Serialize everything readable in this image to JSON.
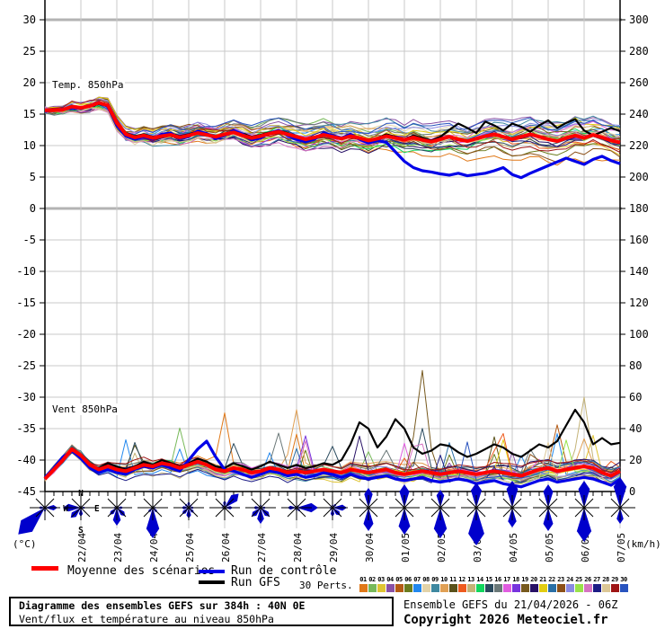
{
  "chart_data": {
    "type": "line",
    "title": "Diagramme des ensembles GEFS sur 384h : 40N 0E",
    "subtitle": "Vent/flux et température au niveau 850hPa",
    "run_info": "Ensemble GEFS du 21/04/2026 - 06Z",
    "copyright": "Copyright 2026 Meteociel.fr",
    "panel_labels": {
      "temp": "Temp. 850hPa",
      "wind": "Vent 850hPa"
    },
    "axes": {
      "left": {
        "unit": "(°C)",
        "ticks": [
          30,
          25,
          20,
          15,
          10,
          5,
          0,
          -5,
          -10,
          -15,
          -20,
          -25,
          -30,
          -35,
          -40,
          -45
        ],
        "range": [
          30,
          -45
        ]
      },
      "right": {
        "unit": "(km/h)",
        "ticks": [
          300,
          280,
          260,
          240,
          220,
          200,
          180,
          160,
          140,
          120,
          100,
          80,
          60,
          40,
          20,
          0
        ],
        "range": [
          300,
          0
        ]
      },
      "x": {
        "labels": [
          "22/04",
          "23/04",
          "24/04",
          "25/04",
          "26/04",
          "27/04",
          "28/04",
          "29/04",
          "30/04",
          "01/05",
          "02/05",
          "03/05",
          "04/05",
          "05/05",
          "06/05",
          "07/05"
        ],
        "hours": 384,
        "points": 65
      }
    },
    "legend": {
      "mean": {
        "label": "Moyenne des scénarios",
        "color": "#FF0000"
      },
      "control": {
        "label": "Run de contrôle",
        "color": "#0000E8"
      },
      "gfs": {
        "label": "Run GFS",
        "color": "#000000"
      },
      "perts_label": "30 Perts.",
      "pert_colors": [
        "#E07818",
        "#77B959",
        "#DFC432",
        "#8A51A5",
        "#B55A14",
        "#6B7C1E",
        "#2288EE",
        "#E2D3A9",
        "#3E88A0",
        "#E0A055",
        "#59511A",
        "#EE5A1E",
        "#C4B377",
        "#10D75D",
        "#2A4A5E",
        "#6A7878",
        "#E05DE0",
        "#7733DD",
        "#77591E",
        "#281166",
        "#E2CD11",
        "#2A6FA5",
        "#8C5018",
        "#8A8AE2",
        "#99E24A",
        "#D573C2",
        "#1C1C85",
        "#DCC796",
        "#9E1414",
        "#2853BE"
      ]
    },
    "series": {
      "temp": {
        "mean": [
          15.6,
          15.6,
          15.7,
          16.2,
          16.0,
          16.3,
          16.8,
          16.4,
          13.6,
          11.8,
          11.3,
          11.6,
          11.2,
          11.5,
          11.7,
          11.3,
          11.6,
          12.0,
          11.7,
          11.4,
          11.8,
          12.1,
          11.6,
          11.2,
          11.5,
          11.9,
          12.2,
          11.8,
          11.4,
          11.0,
          11.3,
          11.7,
          11.4,
          11.1,
          11.5,
          11.2,
          10.8,
          11.1,
          11.5,
          11.2,
          10.9,
          11.3,
          10.9,
          10.6,
          11.0,
          11.4,
          11.0,
          10.7,
          11.1,
          11.5,
          11.8,
          11.4,
          11.0,
          11.4,
          11.8,
          11.4,
          11.0,
          10.7,
          11.2,
          11.6,
          11.2,
          11.7,
          11.3,
          10.8,
          10.5
        ],
        "control": [
          15.5,
          15.6,
          15.8,
          16.0,
          15.9,
          16.4,
          16.9,
          16.2,
          13.2,
          11.5,
          11.0,
          11.4,
          11.0,
          11.8,
          12.0,
          11.1,
          11.4,
          12.3,
          11.9,
          11.1,
          11.6,
          12.4,
          11.8,
          10.9,
          11.2,
          12.0,
          12.4,
          11.6,
          11.0,
          10.6,
          11.0,
          12.0,
          11.6,
          11.2,
          11.8,
          11.0,
          10.4,
          10.8,
          10.5,
          9.0,
          7.5,
          6.5,
          6.0,
          5.8,
          5.5,
          5.3,
          5.6,
          5.2,
          5.4,
          5.6,
          6.0,
          6.5,
          5.4,
          4.9,
          5.6,
          6.2,
          6.8,
          7.4,
          8.0,
          7.5,
          7.0,
          7.8,
          8.3,
          7.6,
          7.1
        ],
        "gfs": [
          15.5,
          15.5,
          15.6,
          16.1,
          16.0,
          16.2,
          16.6,
          16.3,
          13.8,
          12.0,
          11.5,
          11.8,
          11.4,
          11.6,
          11.9,
          11.5,
          11.8,
          12.2,
          11.8,
          11.2,
          11.6,
          12.3,
          11.9,
          11.4,
          11.7,
          12.1,
          12.4,
          12.0,
          11.2,
          10.8,
          11.1,
          11.9,
          11.6,
          11.0,
          11.4,
          11.0,
          10.6,
          11.2,
          11.8,
          11.4,
          11.0,
          11.6,
          11.2,
          10.8,
          11.4,
          12.5,
          13.5,
          12.8,
          12.0,
          13.8,
          13.2,
          12.4,
          13.5,
          13.0,
          12.2,
          13.2,
          14.0,
          12.8,
          13.6,
          14.2,
          12.4,
          11.6,
          12.2,
          12.8,
          12.3
        ]
      },
      "wind": {
        "mean": [
          8,
          14,
          20,
          27,
          23,
          17,
          14,
          16,
          14,
          13,
          15,
          17,
          16,
          18,
          17,
          15,
          17,
          19,
          17,
          14,
          13,
          15,
          14,
          12,
          13,
          15,
          14,
          12,
          13,
          12,
          13,
          14,
          13,
          12,
          14,
          13,
          12,
          13,
          14,
          12,
          11,
          12,
          13,
          12,
          11,
          12,
          13,
          12,
          11,
          12,
          13,
          12,
          11,
          10,
          12,
          14,
          15,
          13,
          14,
          15,
          16,
          15,
          12,
          10,
          13
        ],
        "control": [
          9,
          15,
          22,
          26,
          21,
          15,
          12,
          14,
          12,
          11,
          14,
          16,
          15,
          17,
          15,
          13,
          20,
          27,
          32,
          22,
          14,
          13,
          11,
          9,
          11,
          13,
          12,
          10,
          11,
          9,
          10,
          12,
          11,
          9,
          11,
          9,
          8,
          9,
          10,
          8,
          7,
          8,
          9,
          7,
          6,
          7,
          8,
          7,
          5,
          6,
          7,
          5,
          4,
          3,
          5,
          7,
          8,
          6,
          7,
          8,
          9,
          8,
          6,
          4,
          8
        ],
        "gfs": [
          8,
          15,
          21,
          26,
          22,
          16,
          15,
          18,
          16,
          14,
          16,
          19,
          17,
          20,
          18,
          16,
          18,
          21,
          19,
          16,
          15,
          18,
          16,
          14,
          16,
          19,
          17,
          15,
          17,
          15,
          16,
          18,
          17,
          20,
          30,
          44,
          40,
          28,
          35,
          46,
          40,
          28,
          24,
          26,
          30,
          29,
          25,
          22,
          24,
          27,
          30,
          28,
          24,
          22,
          26,
          30,
          28,
          32,
          42,
          52,
          44,
          30,
          34,
          30,
          31
        ]
      },
      "pert_gen": {
        "count": 30,
        "temp_spread": [
          0.55,
          3.6,
          0.85
        ],
        "temp_step": 1.1,
        "wind_spread": [
          4,
          10,
          0.7
        ],
        "wind_step": 2.4,
        "wind_spikes": [
          {
            "pert": 19,
            "i": 42,
            "v": 77
          },
          {
            "pert": 13,
            "i": 60,
            "v": 60
          },
          {
            "pert": 1,
            "i": 20,
            "v": 50
          },
          {
            "pert": 10,
            "i": 28,
            "v": 52
          }
        ]
      }
    },
    "wind_roses": {
      "directions": [
        "N",
        "NE",
        "E",
        "SE",
        "S",
        "SW",
        "W",
        "NW"
      ],
      "compass": {
        "n": "N",
        "e": "E",
        "s": "S",
        "w": "W"
      },
      "color": "#0000CC",
      "petals": [
        [
          3,
          2,
          14,
          3,
          5,
          42,
          7,
          3
        ],
        [
          3,
          2,
          5,
          3,
          10,
          16,
          20,
          3
        ],
        [
          3,
          3,
          7,
          13,
          20,
          11,
          4,
          3
        ],
        [
          3,
          2,
          4,
          7,
          34,
          7,
          3,
          2
        ],
        [
          7,
          5,
          6,
          8,
          12,
          10,
          8,
          6
        ],
        [
          8,
          22,
          9,
          3,
          3,
          3,
          4,
          5
        ],
        [
          4,
          3,
          6,
          14,
          18,
          14,
          8,
          3
        ],
        [
          3,
          4,
          24,
          6,
          4,
          3,
          10,
          3
        ],
        [
          4,
          6,
          16,
          12,
          10,
          4,
          4,
          3
        ],
        [
          22,
          2,
          3,
          2,
          26,
          3,
          2,
          2
        ],
        [
          26,
          2,
          3,
          2,
          30,
          2,
          2,
          2
        ],
        [
          20,
          2,
          3,
          2,
          34,
          2,
          2,
          2
        ],
        [
          28,
          2,
          3,
          2,
          42,
          2,
          2,
          2
        ],
        [
          30,
          2,
          3,
          2,
          22,
          2,
          2,
          2
        ],
        [
          26,
          3,
          3,
          3,
          26,
          3,
          3,
          2
        ],
        [
          30,
          2,
          3,
          2,
          38,
          2,
          2,
          2
        ],
        [
          34,
          3,
          3,
          2,
          18,
          2,
          3,
          2
        ]
      ]
    },
    "grid_color": "#C9C9C9",
    "grid_bold_color": "#B3B3B3"
  }
}
